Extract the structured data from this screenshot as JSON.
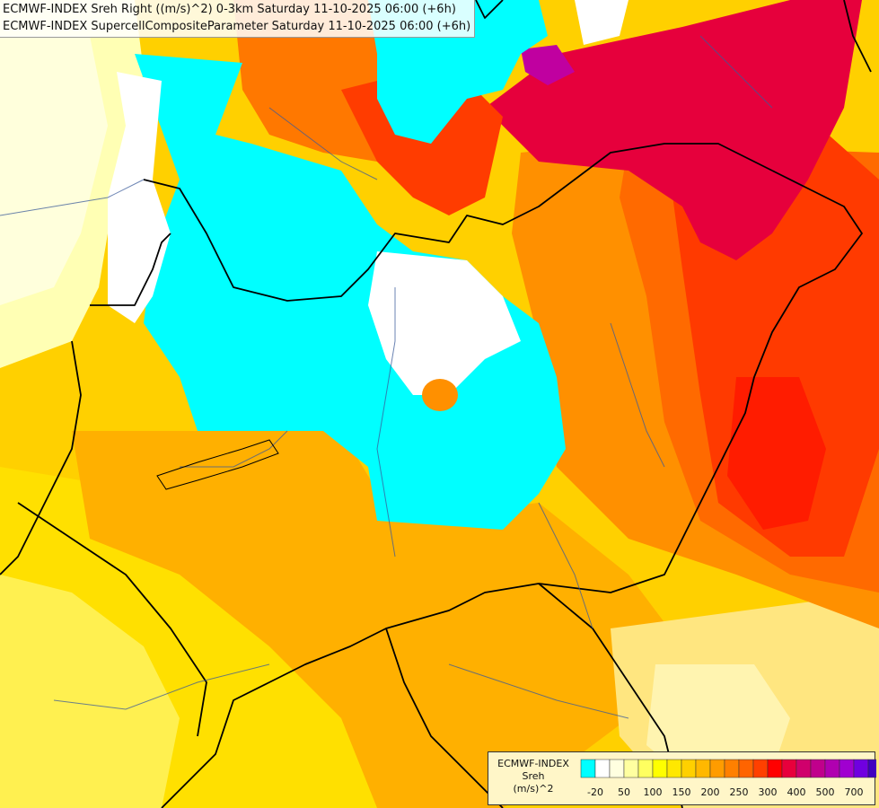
{
  "header": {
    "line1": "ECMWF-INDEX Sreh Right ((m/s)^2) 0-3km Saturday 11-10-2025 06:00 (+6h)",
    "line2": "ECMWF-INDEX SupercellCompositeParameter Saturday 11-10-2025 06:00 (+6h)"
  },
  "legend": {
    "title": "ECMWF-INDEX",
    "variable": "Sreh",
    "unit": "(m/s)^2",
    "colors": [
      "#00ffff",
      "#ffffff",
      "#ffffe0",
      "#ffffa0",
      "#ffff60",
      "#ffff00",
      "#ffe800",
      "#ffd000",
      "#ffb800",
      "#ff9c00",
      "#ff8000",
      "#ff6400",
      "#ff4000",
      "#ff0000",
      "#e8003c",
      "#d0006c",
      "#c0008c",
      "#b000b0",
      "#a000d0",
      "#7000e0",
      "#4000c0",
      "#2000a0",
      "#000080"
    ],
    "labels": [
      "-20",
      "50",
      "100",
      "150",
      "200",
      "250",
      "300",
      "400",
      "500",
      "700"
    ]
  },
  "map_colors": {
    "cyan": "#00ffff",
    "white": "#ffffff",
    "pale": "#ffffc8",
    "yellow": "#ffe000",
    "gold": "#ffc800",
    "orange": "#ffa000",
    "dark_orange": "#ff7800",
    "red": "#ff3c00",
    "crimson": "#e6003c",
    "magenta": "#c000a0"
  }
}
